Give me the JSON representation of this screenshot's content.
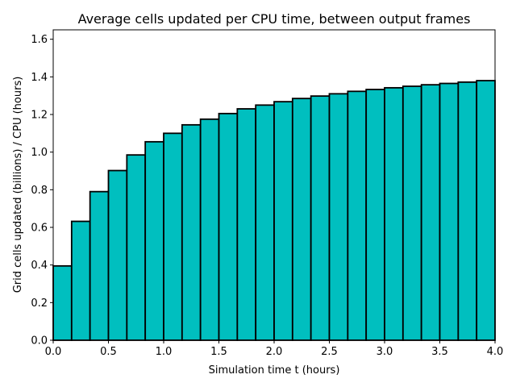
{
  "chart_data": {
    "type": "bar",
    "title": "Average cells updated per CPU time, between output frames",
    "xlabel": "Simulation time t (hours)",
    "ylabel": "Grid cells updated (billions) / CPU (hours)",
    "xlim": [
      0.0,
      4.0
    ],
    "ylim": [
      0.0,
      1.65
    ],
    "xticks": [
      "0.0",
      "0.5",
      "1.0",
      "1.5",
      "2.0",
      "2.5",
      "3.0",
      "3.5",
      "4.0"
    ],
    "yticks": [
      "0.0",
      "0.2",
      "0.4",
      "0.6",
      "0.8",
      "1.0",
      "1.2",
      "1.4",
      "1.6"
    ],
    "bin_width": 0.1667,
    "bar_color": "#00bfbf",
    "edge_color": "#000000",
    "grid": false,
    "bins": [
      {
        "x_start": 0.0,
        "value": 0.395
      },
      {
        "x_start": 0.1667,
        "value": 0.632
      },
      {
        "x_start": 0.3333,
        "value": 0.79
      },
      {
        "x_start": 0.5,
        "value": 0.902
      },
      {
        "x_start": 0.6667,
        "value": 0.985
      },
      {
        "x_start": 0.8333,
        "value": 1.055
      },
      {
        "x_start": 1.0,
        "value": 1.1
      },
      {
        "x_start": 1.1667,
        "value": 1.145
      },
      {
        "x_start": 1.3333,
        "value": 1.175
      },
      {
        "x_start": 1.5,
        "value": 1.205
      },
      {
        "x_start": 1.6667,
        "value": 1.23
      },
      {
        "x_start": 1.8333,
        "value": 1.25
      },
      {
        "x_start": 2.0,
        "value": 1.268
      },
      {
        "x_start": 2.1667,
        "value": 1.285
      },
      {
        "x_start": 2.3333,
        "value": 1.298
      },
      {
        "x_start": 2.5,
        "value": 1.31
      },
      {
        "x_start": 2.6667,
        "value": 1.323
      },
      {
        "x_start": 2.8333,
        "value": 1.333
      },
      {
        "x_start": 3.0,
        "value": 1.342
      },
      {
        "x_start": 3.1667,
        "value": 1.35
      },
      {
        "x_start": 3.3333,
        "value": 1.358
      },
      {
        "x_start": 3.5,
        "value": 1.365
      },
      {
        "x_start": 3.6667,
        "value": 1.372
      },
      {
        "x_start": 3.8333,
        "value": 1.38
      }
    ]
  }
}
